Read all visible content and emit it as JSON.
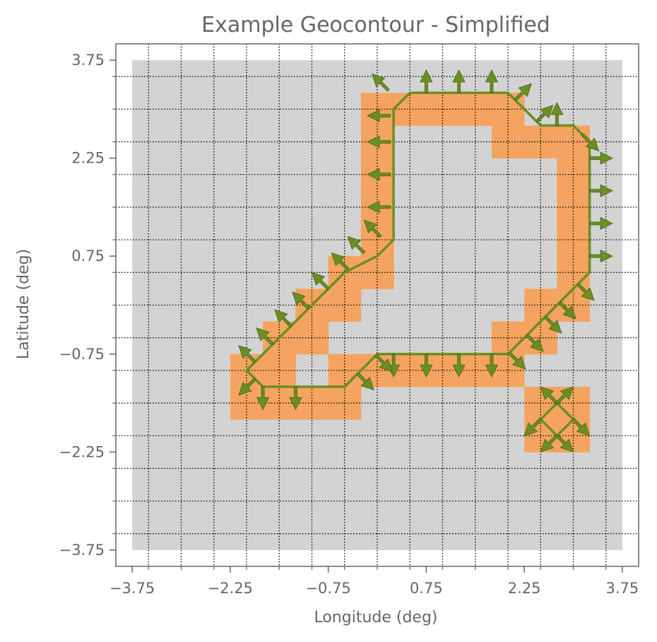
{
  "chart_data": {
    "type": "heatmap",
    "title": "Example Geocontour - Simplified",
    "xlabel": "Longitude (deg)",
    "ylabel": "Latitude (deg)",
    "xlim": [
      -4.0,
      4.0
    ],
    "ylim": [
      -4.0,
      4.0
    ],
    "cell_size": 0.5,
    "x_ticks": [
      -3.75,
      -2.25,
      -0.75,
      0.75,
      2.25,
      3.75
    ],
    "y_ticks": [
      -3.75,
      -2.25,
      -0.75,
      0.75,
      2.25,
      3.75
    ],
    "x_tick_labels": [
      "−3.75",
      "−2.25",
      "−0.75",
      "0.75",
      "2.25",
      "3.75"
    ],
    "y_tick_labels": [
      "−3.75",
      "−2.25",
      "−0.75",
      "0.75",
      "2.25",
      "3.75"
    ],
    "grid": true,
    "grid_style": "dotted",
    "domain": {
      "lon": [
        -3.5,
        3.5
      ],
      "lat": [
        -3.5,
        3.5
      ]
    },
    "colors": {
      "background": "#ffffff",
      "domain_cell": "#d3d3d3",
      "boundary_cell": "#f4a460",
      "contour": "#6b8e23",
      "arrow": "#6b8e23",
      "arrow_edge": "#4a6316",
      "grid": "#000000",
      "text": "#666666"
    },
    "boundary_cells": [
      [
        0,
        3
      ],
      [
        0.5,
        3
      ],
      [
        1,
        3
      ],
      [
        1.5,
        3
      ],
      [
        2,
        3
      ],
      [
        0,
        2.5
      ],
      [
        2,
        2.5
      ],
      [
        2.5,
        2.5
      ],
      [
        3,
        2.5
      ],
      [
        0,
        2
      ],
      [
        3,
        2
      ],
      [
        0,
        1.5
      ],
      [
        3,
        1.5
      ],
      [
        0,
        1
      ],
      [
        3,
        1
      ],
      [
        -0.5,
        0.5
      ],
      [
        0,
        0.5
      ],
      [
        3,
        0.5
      ],
      [
        -1,
        0
      ],
      [
        -0.5,
        0
      ],
      [
        2.5,
        0
      ],
      [
        3,
        0
      ],
      [
        -1.5,
        -0.5
      ],
      [
        -1,
        -0.5
      ],
      [
        2,
        -0.5
      ],
      [
        2.5,
        -0.5
      ],
      [
        -2,
        -1
      ],
      [
        -1.5,
        -1
      ],
      [
        -0.5,
        -1
      ],
      [
        0,
        -1
      ],
      [
        0.5,
        -1
      ],
      [
        1,
        -1
      ],
      [
        1.5,
        -1
      ],
      [
        2,
        -1
      ],
      [
        -2,
        -1.5
      ],
      [
        -1.5,
        -1.5
      ],
      [
        -1,
        -1.5
      ],
      [
        -0.5,
        -1.5
      ],
      [
        2.5,
        -1.5
      ],
      [
        3,
        -1.5
      ],
      [
        2.5,
        -2
      ],
      [
        3,
        -2
      ]
    ],
    "contours": [
      {
        "points": [
          [
            0,
            0.75
          ],
          [
            0.25,
            1.0
          ],
          [
            0.25,
            3.0
          ],
          [
            0.5,
            3.25
          ],
          [
            2.0,
            3.25
          ],
          [
            2.5,
            2.75
          ],
          [
            3.0,
            2.75
          ],
          [
            3.25,
            2.5
          ],
          [
            3.25,
            0.5
          ],
          [
            2.75,
            0.0
          ],
          [
            2.25,
            -0.5
          ],
          [
            2.0,
            -0.75
          ],
          [
            0.0,
            -0.75
          ],
          [
            -0.5,
            -1.25
          ],
          [
            -1.5,
            -1.25
          ],
          [
            -1.75,
            -1.25
          ],
          [
            -2.0,
            -1.0
          ],
          [
            -1.5,
            -0.5
          ],
          [
            -1.0,
            0.0
          ],
          [
            -0.5,
            0.5
          ],
          [
            0,
            0.75
          ]
        ]
      },
      {
        "points": [
          [
            2.75,
            -1.5
          ],
          [
            3.0,
            -1.75
          ],
          [
            2.75,
            -2.0
          ],
          [
            2.5,
            -1.75
          ],
          [
            2.75,
            -1.5
          ]
        ]
      }
    ],
    "vectors": [
      [
        0.17,
        3.29,
        -0.25,
        0.25
      ],
      [
        0.75,
        3.25,
        0,
        0.35
      ],
      [
        1.25,
        3.25,
        0,
        0.35
      ],
      [
        1.75,
        3.25,
        0,
        0.35
      ],
      [
        2.11,
        3.14,
        0.25,
        0.25
      ],
      [
        2.44,
        2.81,
        0.25,
        0.25
      ],
      [
        2.75,
        2.75,
        0,
        0.35
      ],
      [
        3.14,
        2.61,
        0.25,
        -0.25
      ],
      [
        3.25,
        2.25,
        0.35,
        0
      ],
      [
        3.25,
        1.75,
        0.35,
        0
      ],
      [
        3.25,
        1.25,
        0.35,
        0
      ],
      [
        3.25,
        0.75,
        0.35,
        0
      ],
      [
        3.07,
        0.32,
        0.25,
        -0.25
      ],
      [
        2.79,
        0.04,
        0.25,
        -0.25
      ],
      [
        2.57,
        -0.18,
        0.25,
        -0.25
      ],
      [
        2.29,
        -0.46,
        0.25,
        -0.25
      ],
      [
        2.02,
        -0.73,
        0.25,
        -0.25
      ],
      [
        1.75,
        -0.75,
        0,
        -0.35
      ],
      [
        1.25,
        -0.75,
        0,
        -0.35
      ],
      [
        0.75,
        -0.75,
        0,
        -0.35
      ],
      [
        0.25,
        -0.75,
        0,
        -0.35
      ],
      [
        -0.02,
        -0.77,
        0.25,
        -0.25
      ],
      [
        -0.3,
        -1.05,
        0.25,
        -0.25
      ],
      [
        -1.25,
        -1.25,
        0,
        -0.35
      ],
      [
        -1.75,
        -1.25,
        0,
        -0.35
      ],
      [
        -1.87,
        -1.13,
        -0.25,
        -0.25
      ],
      [
        -1.87,
        -0.87,
        -0.25,
        0.25
      ],
      [
        -1.6,
        -0.6,
        -0.25,
        0.25
      ],
      [
        -1.32,
        -0.32,
        -0.25,
        0.25
      ],
      [
        -1.05,
        -0.05,
        -0.25,
        0.25
      ],
      [
        -0.75,
        0.25,
        -0.25,
        0.25
      ],
      [
        -0.45,
        0.55,
        -0.25,
        0.25
      ],
      [
        -0.2,
        0.8,
        -0.25,
        0.25
      ],
      [
        0.05,
        1.05,
        -0.25,
        0.25
      ],
      [
        0.2,
        1.5,
        -0.35,
        0
      ],
      [
        0.2,
        2.0,
        -0.35,
        0
      ],
      [
        0.2,
        2.5,
        -0.35,
        0
      ],
      [
        0.2,
        2.9,
        -0.35,
        0
      ],
      [
        2.75,
        -1.5,
        -0.25,
        0.25
      ],
      [
        2.75,
        -1.5,
        0.25,
        0.25
      ],
      [
        3.0,
        -1.75,
        0.25,
        -0.25
      ],
      [
        2.75,
        -2.0,
        0.25,
        -0.25
      ],
      [
        2.75,
        -2.0,
        -0.25,
        -0.25
      ],
      [
        2.5,
        -1.75,
        -0.25,
        -0.25
      ]
    ]
  }
}
